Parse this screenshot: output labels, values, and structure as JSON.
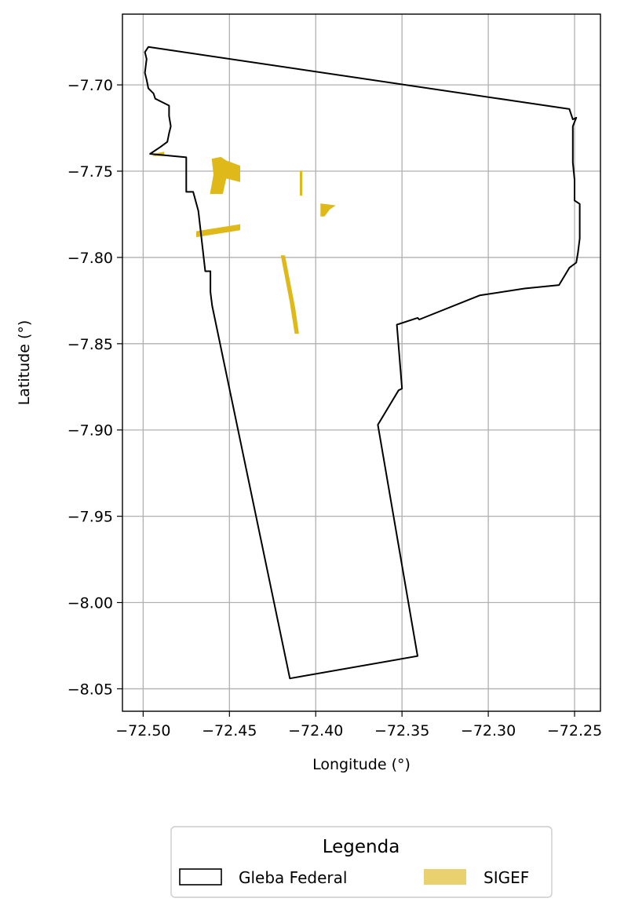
{
  "chart_data": {
    "type": "map",
    "xlabel": "Longitude (°)",
    "ylabel": "Latitude (°)",
    "xlim": [
      -72.512,
      -72.235
    ],
    "ylim": [
      -8.063,
      -7.659
    ],
    "grid": true,
    "x_ticks": [
      -72.5,
      -72.45,
      -72.4,
      -72.35,
      -72.3,
      -72.25
    ],
    "x_tick_labels": [
      "−72.50",
      "−72.45",
      "−72.40",
      "−72.35",
      "−72.30",
      "−72.25"
    ],
    "y_ticks": [
      -7.7,
      -7.75,
      -7.8,
      -7.85,
      -7.9,
      -7.95,
      -8.0,
      -8.05
    ],
    "y_tick_labels": [
      "−7.70",
      "−7.75",
      "−7.80",
      "−7.85",
      "−7.90",
      "−7.95",
      "−8.00",
      "−8.05"
    ],
    "legend": {
      "title": "Legenda",
      "placement": "bottom-center, below plot",
      "entries": [
        {
          "label": "Gleba Federal",
          "style": "outline",
          "color": "#000000"
        },
        {
          "label": "SIGEF",
          "style": "fill",
          "color": "#e9d16f"
        }
      ]
    },
    "layers": [
      {
        "name": "Gleba Federal",
        "style": "outline",
        "color": "#000000",
        "polygon": [
          [
            -72.497,
            -7.678
          ],
          [
            -72.253,
            -7.714
          ],
          [
            -72.251,
            -7.72
          ],
          [
            -72.249,
            -7.719
          ],
          [
            -72.251,
            -7.724
          ],
          [
            -72.251,
            -7.745
          ],
          [
            -72.25,
            -7.755
          ],
          [
            -72.25,
            -7.767
          ],
          [
            -72.247,
            -7.769
          ],
          [
            -72.247,
            -7.789
          ],
          [
            -72.248,
            -7.797
          ],
          [
            -72.249,
            -7.803
          ],
          [
            -72.253,
            -7.806
          ],
          [
            -72.256,
            -7.811
          ],
          [
            -72.259,
            -7.816
          ],
          [
            -72.279,
            -7.818
          ],
          [
            -72.305,
            -7.822
          ],
          [
            -72.34,
            -7.836
          ],
          [
            -72.341,
            -7.835
          ],
          [
            -72.353,
            -7.839
          ],
          [
            -72.35,
            -7.876
          ],
          [
            -72.352,
            -7.877
          ],
          [
            -72.364,
            -7.897
          ],
          [
            -72.341,
            -8.031
          ],
          [
            -72.415,
            -8.044
          ],
          [
            -72.46,
            -7.828
          ],
          [
            -72.461,
            -7.82
          ],
          [
            -72.461,
            -7.808
          ],
          [
            -72.464,
            -7.808
          ],
          [
            -72.468,
            -7.773
          ],
          [
            -72.471,
            -7.762
          ],
          [
            -72.475,
            -7.762
          ],
          [
            -72.475,
            -7.742
          ],
          [
            -72.496,
            -7.74
          ],
          [
            -72.49,
            -7.736
          ],
          [
            -72.486,
            -7.733
          ],
          [
            -72.485,
            -7.728
          ],
          [
            -72.484,
            -7.724
          ],
          [
            -72.485,
            -7.718
          ],
          [
            -72.485,
            -7.712
          ],
          [
            -72.489,
            -7.71
          ],
          [
            -72.493,
            -7.708
          ],
          [
            -72.494,
            -7.705
          ],
          [
            -72.497,
            -7.702
          ],
          [
            -72.498,
            -7.697
          ],
          [
            -72.499,
            -7.693
          ],
          [
            -72.498,
            -7.685
          ],
          [
            -72.499,
            -7.681
          ],
          [
            -72.497,
            -7.678
          ]
        ]
      },
      {
        "name": "SIGEF",
        "style": "fill",
        "color": "#dfb91a",
        "polygons": [
          [
            [
              -72.46,
              -7.743
            ],
            [
              -72.455,
              -7.742
            ],
            [
              -72.452,
              -7.744
            ],
            [
              -72.444,
              -7.747
            ],
            [
              -72.444,
              -7.756
            ],
            [
              -72.452,
              -7.754
            ],
            [
              -72.454,
              -7.763
            ],
            [
              -72.461,
              -7.763
            ],
            [
              -72.459,
              -7.752
            ]
          ],
          [
            [
              -72.493,
              -7.74
            ],
            [
              -72.488,
              -7.739
            ],
            [
              -72.488,
              -7.741
            ],
            [
              -72.494,
              -7.741
            ]
          ],
          [
            [
              -72.469,
              -7.785
            ],
            [
              -72.444,
              -7.781
            ],
            [
              -72.444,
              -7.784
            ],
            [
              -72.469,
              -7.788
            ]
          ],
          [
            [
              -72.397,
              -7.769
            ],
            [
              -72.389,
              -7.77
            ],
            [
              -72.392,
              -7.772
            ],
            [
              -72.395,
              -7.776
            ],
            [
              -72.397,
              -7.776
            ]
          ],
          [
            [
              -72.409,
              -7.75
            ],
            [
              -72.408,
              -7.75
            ],
            [
              -72.408,
              -7.764
            ],
            [
              -72.409,
              -7.764
            ]
          ],
          [
            [
              -72.42,
              -7.799
            ],
            [
              -72.418,
              -7.799
            ],
            [
              -72.412,
              -7.83
            ],
            [
              -72.41,
              -7.844
            ],
            [
              -72.412,
              -7.844
            ],
            [
              -72.415,
              -7.825
            ]
          ]
        ]
      }
    ]
  }
}
